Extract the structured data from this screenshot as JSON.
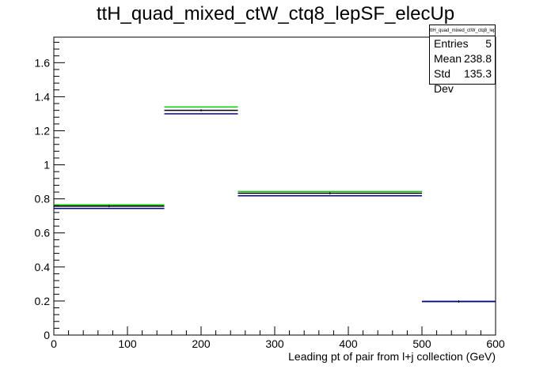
{
  "chart_data": {
    "type": "histogram",
    "title": "ttH_quad_mixed_ctW_ctq8_lepSF_elecUp",
    "xlabel": "Leading pt of pair from l+j collection (GeV)",
    "ylabel": "",
    "xlim": [
      0,
      600
    ],
    "ylim": [
      0,
      1.75
    ],
    "x_ticks": [
      0,
      100,
      200,
      300,
      400,
      500,
      600
    ],
    "y_ticks": [
      0,
      0.2,
      0.4,
      0.6,
      0.8,
      1,
      1.2,
      1.4,
      1.6
    ],
    "bins": [
      [
        0,
        150
      ],
      [
        150,
        250
      ],
      [
        250,
        500
      ],
      [
        500,
        600
      ]
    ],
    "series": [
      {
        "color": "#00cc00",
        "values": [
          0.765,
          1.34,
          0.843,
          0.197
        ]
      },
      {
        "color": "#000000",
        "values": [
          0.757,
          1.32,
          0.833,
          0.197
        ]
      },
      {
        "color": "#000099",
        "values": [
          0.744,
          1.3,
          0.818,
          0.197
        ]
      }
    ],
    "stats": {
      "title": "ttH_quad_mixed_ctW_ctq8_lepSF_elecUp",
      "entries_label": "Entries",
      "entries": "5",
      "mean_label": "Mean",
      "mean": "238.8",
      "std_label": "Std Dev",
      "std": "135.3"
    }
  }
}
